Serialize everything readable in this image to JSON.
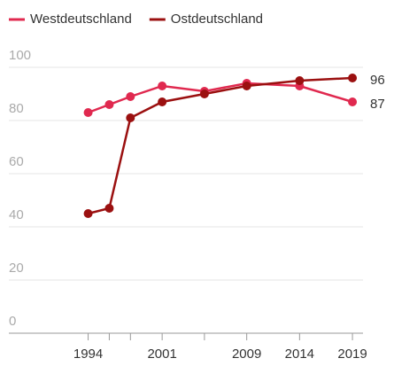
{
  "chart_data": {
    "type": "line",
    "x": [
      1994,
      1996,
      1998,
      2001,
      2005,
      2009,
      2014,
      2019
    ],
    "series": [
      {
        "name": "Westdeutschland",
        "color": "#e0294f",
        "values": [
          83,
          86,
          89,
          93,
          91,
          94,
          93,
          87
        ]
      },
      {
        "name": "Ostdeutschland",
        "color": "#9b1010",
        "values": [
          45,
          47,
          81,
          87,
          90,
          93,
          95,
          96
        ]
      }
    ],
    "xlim": [
      1986.5,
      2020
    ],
    "xticks": [
      1994,
      2001,
      2009,
      2014,
      2019
    ],
    "ylim": [
      0,
      100
    ],
    "yticks": [
      0,
      20,
      40,
      60,
      80,
      100
    ],
    "grid": true
  }
}
